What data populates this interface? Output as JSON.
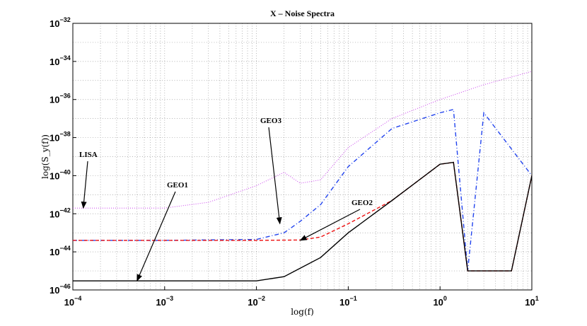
{
  "chart_data": {
    "type": "line",
    "title": "X – Noise Spectra",
    "xlabel": "log(f)",
    "ylabel": "log(S_y(f))",
    "xscale": "log",
    "yscale": "log",
    "xlim": [
      0.0001,
      10
    ],
    "ylim": [
      1e-46,
      1e-32
    ],
    "grid": true,
    "x_ticks": [
      {
        "base": "10",
        "exp": "−4",
        "value": 0.0001
      },
      {
        "base": "10",
        "exp": "−3",
        "value": 0.001
      },
      {
        "base": "10",
        "exp": "−2",
        "value": 0.01
      },
      {
        "base": "10",
        "exp": "−1",
        "value": 0.1
      },
      {
        "base": "10",
        "exp": "0",
        "value": 1
      },
      {
        "base": "10",
        "exp": "1",
        "value": 10
      }
    ],
    "y_ticks": [
      {
        "base": "10",
        "exp": "−32",
        "value": 1e-32
      },
      {
        "base": "10",
        "exp": "−34",
        "value": 1e-34
      },
      {
        "base": "10",
        "exp": "−36",
        "value": 1e-36
      },
      {
        "base": "10",
        "exp": "−38",
        "value": 1e-38
      },
      {
        "base": "10",
        "exp": "−40",
        "value": 1e-40
      },
      {
        "base": "10",
        "exp": "−42",
        "value": 1e-42
      },
      {
        "base": "10",
        "exp": "−44",
        "value": 1e-44
      },
      {
        "base": "10",
        "exp": "−46",
        "value": 1e-46
      }
    ],
    "series": [
      {
        "name": "LISA",
        "color": "#cc44ee",
        "style": "dotted",
        "x": [
          0.0001,
          0.001,
          0.003,
          0.01,
          0.02,
          0.03,
          0.05,
          0.1,
          0.3,
          1,
          3,
          10
        ],
        "y": [
          2e-42,
          2e-42,
          4e-42,
          3e-41,
          1.5e-40,
          4e-41,
          6e-41,
          3e-39,
          1e-37,
          1e-36,
          6e-36,
          3e-35
        ]
      },
      {
        "name": "GEO3",
        "color": "#2244ee",
        "style": "dashdot",
        "x": [
          0.0001,
          0.001,
          0.01,
          0.02,
          0.03,
          0.05,
          0.1,
          0.3,
          1,
          1.4,
          2,
          3,
          10
        ],
        "y": [
          4e-44,
          4e-44,
          4.5e-44,
          1e-43,
          4e-43,
          3e-42,
          3e-40,
          3e-38,
          2e-37,
          3e-37,
          1e-45,
          2e-37,
          1e-40
        ]
      },
      {
        "name": "GEO2",
        "color": "#ee1111",
        "style": "dashed",
        "x": [
          0.0001,
          0.001,
          0.01,
          0.03,
          0.05,
          0.1,
          0.3,
          1,
          1.4,
          2,
          4,
          6,
          10
        ],
        "y": [
          4e-44,
          4e-44,
          4e-44,
          4.2e-44,
          6e-44,
          3e-43,
          5e-42,
          4e-40,
          5e-40,
          1e-45,
          1e-45,
          1e-45,
          1e-40
        ]
      },
      {
        "name": "GEO1",
        "color": "#000000",
        "style": "solid",
        "x": [
          0.0001,
          0.001,
          0.01,
          0.02,
          0.05,
          0.1,
          0.3,
          1,
          1.4,
          2,
          4,
          6,
          10
        ],
        "y": [
          3e-46,
          3e-46,
          3e-46,
          5e-46,
          5e-45,
          1e-43,
          5e-42,
          4e-40,
          5e-40,
          1e-45,
          1e-45,
          1e-45,
          1e-40
        ]
      }
    ],
    "annotations": [
      {
        "text": "LISA",
        "arrow_to": [
          0.00013,
          2e-42
        ]
      },
      {
        "text": "GEO3",
        "arrow_to": [
          0.018,
          3e-43
        ]
      },
      {
        "text": "GEO1",
        "arrow_to": [
          0.0005,
          3e-46
        ]
      },
      {
        "text": "GEO2",
        "arrow_to": [
          0.03,
          4e-44
        ]
      }
    ]
  }
}
